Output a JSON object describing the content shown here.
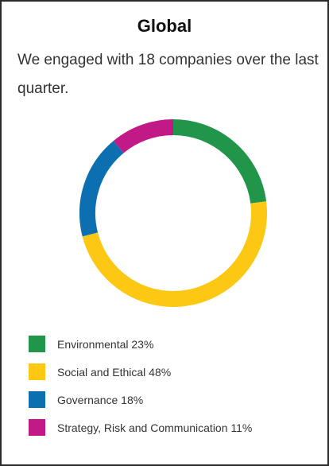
{
  "chart_data": {
    "type": "pie",
    "title": "Global",
    "subtitle": "We engaged with 18 companies over the last quarter.",
    "legend_position": "bottom",
    "slices": [
      {
        "label": "Environmental",
        "value": 23,
        "color": "#21954a"
      },
      {
        "label": "Social and Ethical",
        "value": 48,
        "color": "#fcc814"
      },
      {
        "label": "Governance",
        "value": 18,
        "color": "#0c70b0"
      },
      {
        "label": "Strategy, Risk and Communication",
        "value": 11,
        "color": "#c11985"
      }
    ]
  },
  "legend": {
    "items": [
      {
        "text": "Environmental 23%",
        "color": "#21954a"
      },
      {
        "text": "Social and Ethical 48%",
        "color": "#fcc814"
      },
      {
        "text": "Governance 18%",
        "color": "#0c70b0"
      },
      {
        "text": "Strategy, Risk and Communication 11%",
        "color": "#c11985"
      }
    ]
  }
}
